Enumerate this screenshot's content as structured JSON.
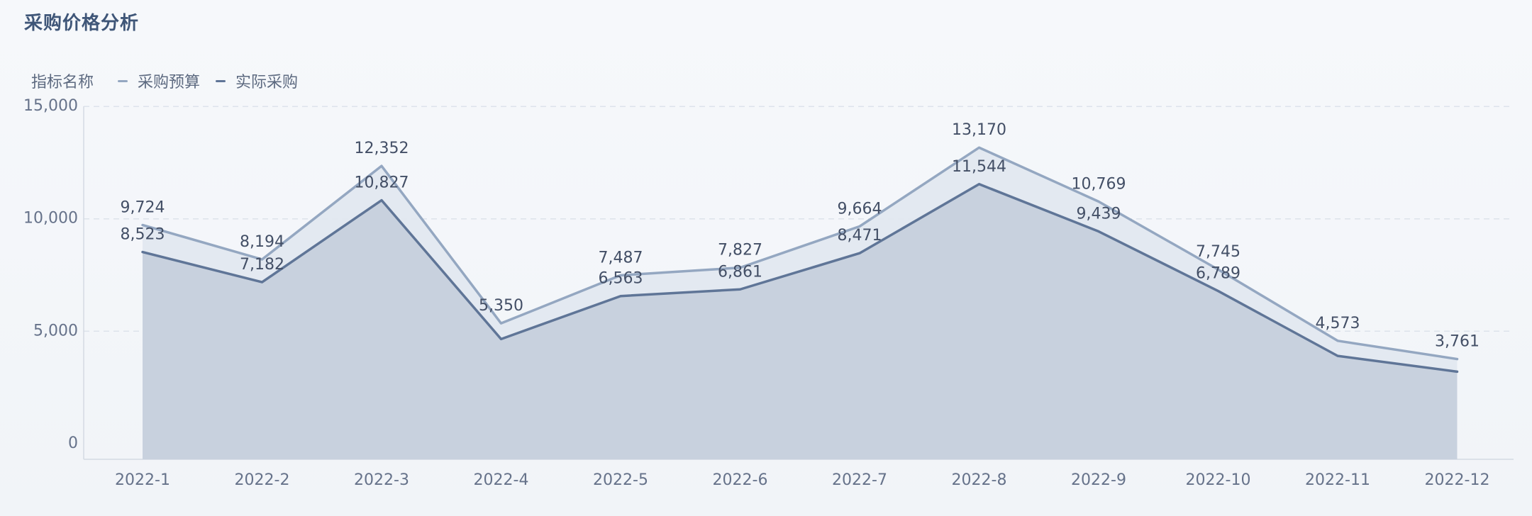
{
  "title": "采购价格分析",
  "legend": {
    "title": "指标名称",
    "items": [
      {
        "label": "采购预算",
        "color": "#94a7c1"
      },
      {
        "label": "实际采购",
        "color": "#5f7597"
      }
    ]
  },
  "chart_data": {
    "type": "area",
    "title": "采购价格分析",
    "categories": [
      "2022-1",
      "2022-2",
      "2022-3",
      "2022-4",
      "2022-5",
      "2022-6",
      "2022-7",
      "2022-8",
      "2022-9",
      "2022-10",
      "2022-11",
      "2022-12"
    ],
    "series": [
      {
        "name": "采购预算",
        "values": [
          9724,
          8194,
          12352,
          5350,
          7487,
          7827,
          9664,
          13170,
          10769,
          7745,
          4573,
          3761
        ],
        "labels": [
          "9,724",
          "8,194",
          "12,352",
          "5,350",
          "7,487",
          "7,827",
          "9,664",
          "13,170",
          "10,769",
          "7,745",
          "4,573",
          "3,761"
        ],
        "line_color": "#94a7c1",
        "fill_color": "#e2e8f0"
      },
      {
        "name": "实际采购",
        "values": [
          8523,
          7182,
          10827,
          4650,
          6563,
          6861,
          8471,
          11544,
          9439,
          6789,
          3900,
          3200
        ],
        "labels": [
          "8,523",
          "7,182",
          "10,827",
          null,
          "6,563",
          "6,861",
          "8,471",
          "11,544",
          "9,439",
          "6,789",
          null,
          null
        ],
        "line_color": "#5f7597",
        "fill_color": "#c6d0dc"
      }
    ],
    "yticks": [
      0,
      5000,
      10000,
      15000
    ],
    "ytick_labels": [
      "0",
      "5,000",
      "10,000",
      "15,000"
    ],
    "ylim": [
      -700,
      15700
    ],
    "grid": true,
    "legend_position": "top-left"
  }
}
